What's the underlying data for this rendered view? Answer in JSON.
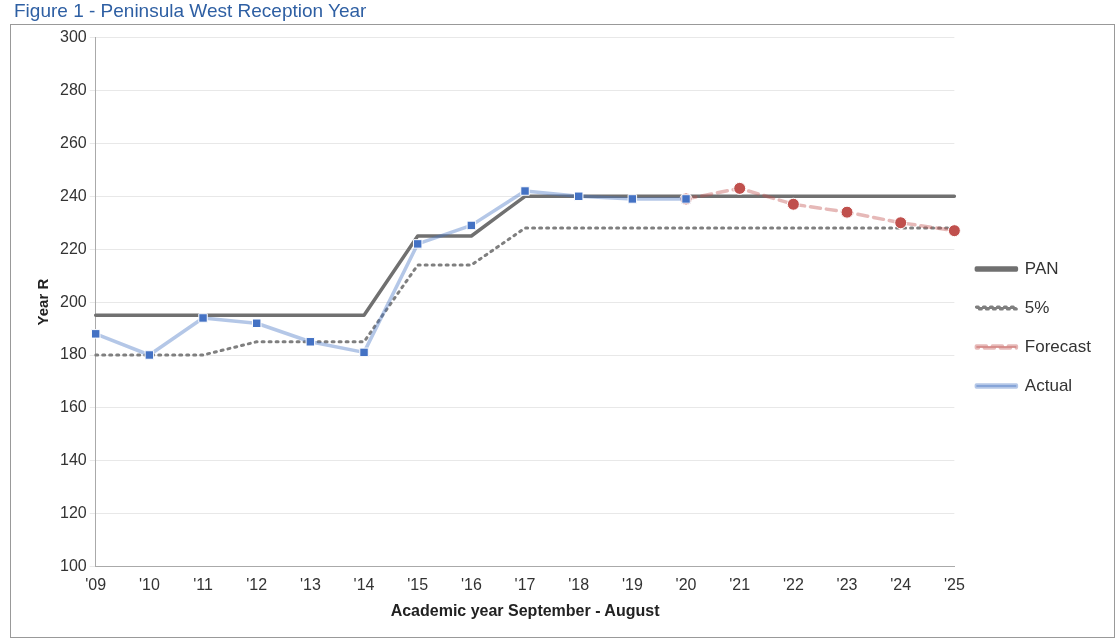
{
  "chart_data": {
    "type": "line",
    "title": "Figure 1 - Peninsula West Reception Year",
    "xlabel": "Academic year September - August",
    "ylabel": "Year R",
    "categories": [
      "'09",
      "'10",
      "'11",
      "'12",
      "'13",
      "'14",
      "'15",
      "'16",
      "'17",
      "'18",
      "'19",
      "'20",
      "'21",
      "'22",
      "'23",
      "'24",
      "'25"
    ],
    "series": [
      {
        "name": "PAN",
        "color": "#707070",
        "marker": "none",
        "line_style": "solid",
        "values": [
          195,
          195,
          195,
          195,
          195,
          195,
          225,
          225,
          240,
          240,
          240,
          240,
          240,
          240,
          240,
          240,
          240
        ]
      },
      {
        "name": "5%",
        "color": "#7f7f7f",
        "marker": "none",
        "line_style": "dotted",
        "values": [
          180,
          180,
          180,
          185,
          185,
          185,
          214,
          214,
          228,
          228,
          228,
          228,
          228,
          228,
          228,
          228,
          228
        ]
      },
      {
        "name": "Forecast",
        "color": "#c0504d",
        "marker": "circle",
        "line_style": "dashed",
        "values": [
          null,
          null,
          null,
          null,
          null,
          null,
          null,
          null,
          null,
          null,
          null,
          239,
          243,
          237,
          234,
          230,
          227
        ]
      },
      {
        "name": "Actual",
        "color": "#4472c4",
        "marker": "square",
        "line_style": "solid",
        "values": [
          188,
          180,
          194,
          192,
          185,
          181,
          222,
          229,
          242,
          240,
          239,
          239,
          null,
          null,
          null,
          null,
          null
        ]
      }
    ],
    "ylim": [
      100,
      300
    ],
    "yticks": [
      100,
      120,
      140,
      160,
      180,
      200,
      220,
      240,
      260,
      280,
      300
    ],
    "grid": "y",
    "legend": "right"
  }
}
